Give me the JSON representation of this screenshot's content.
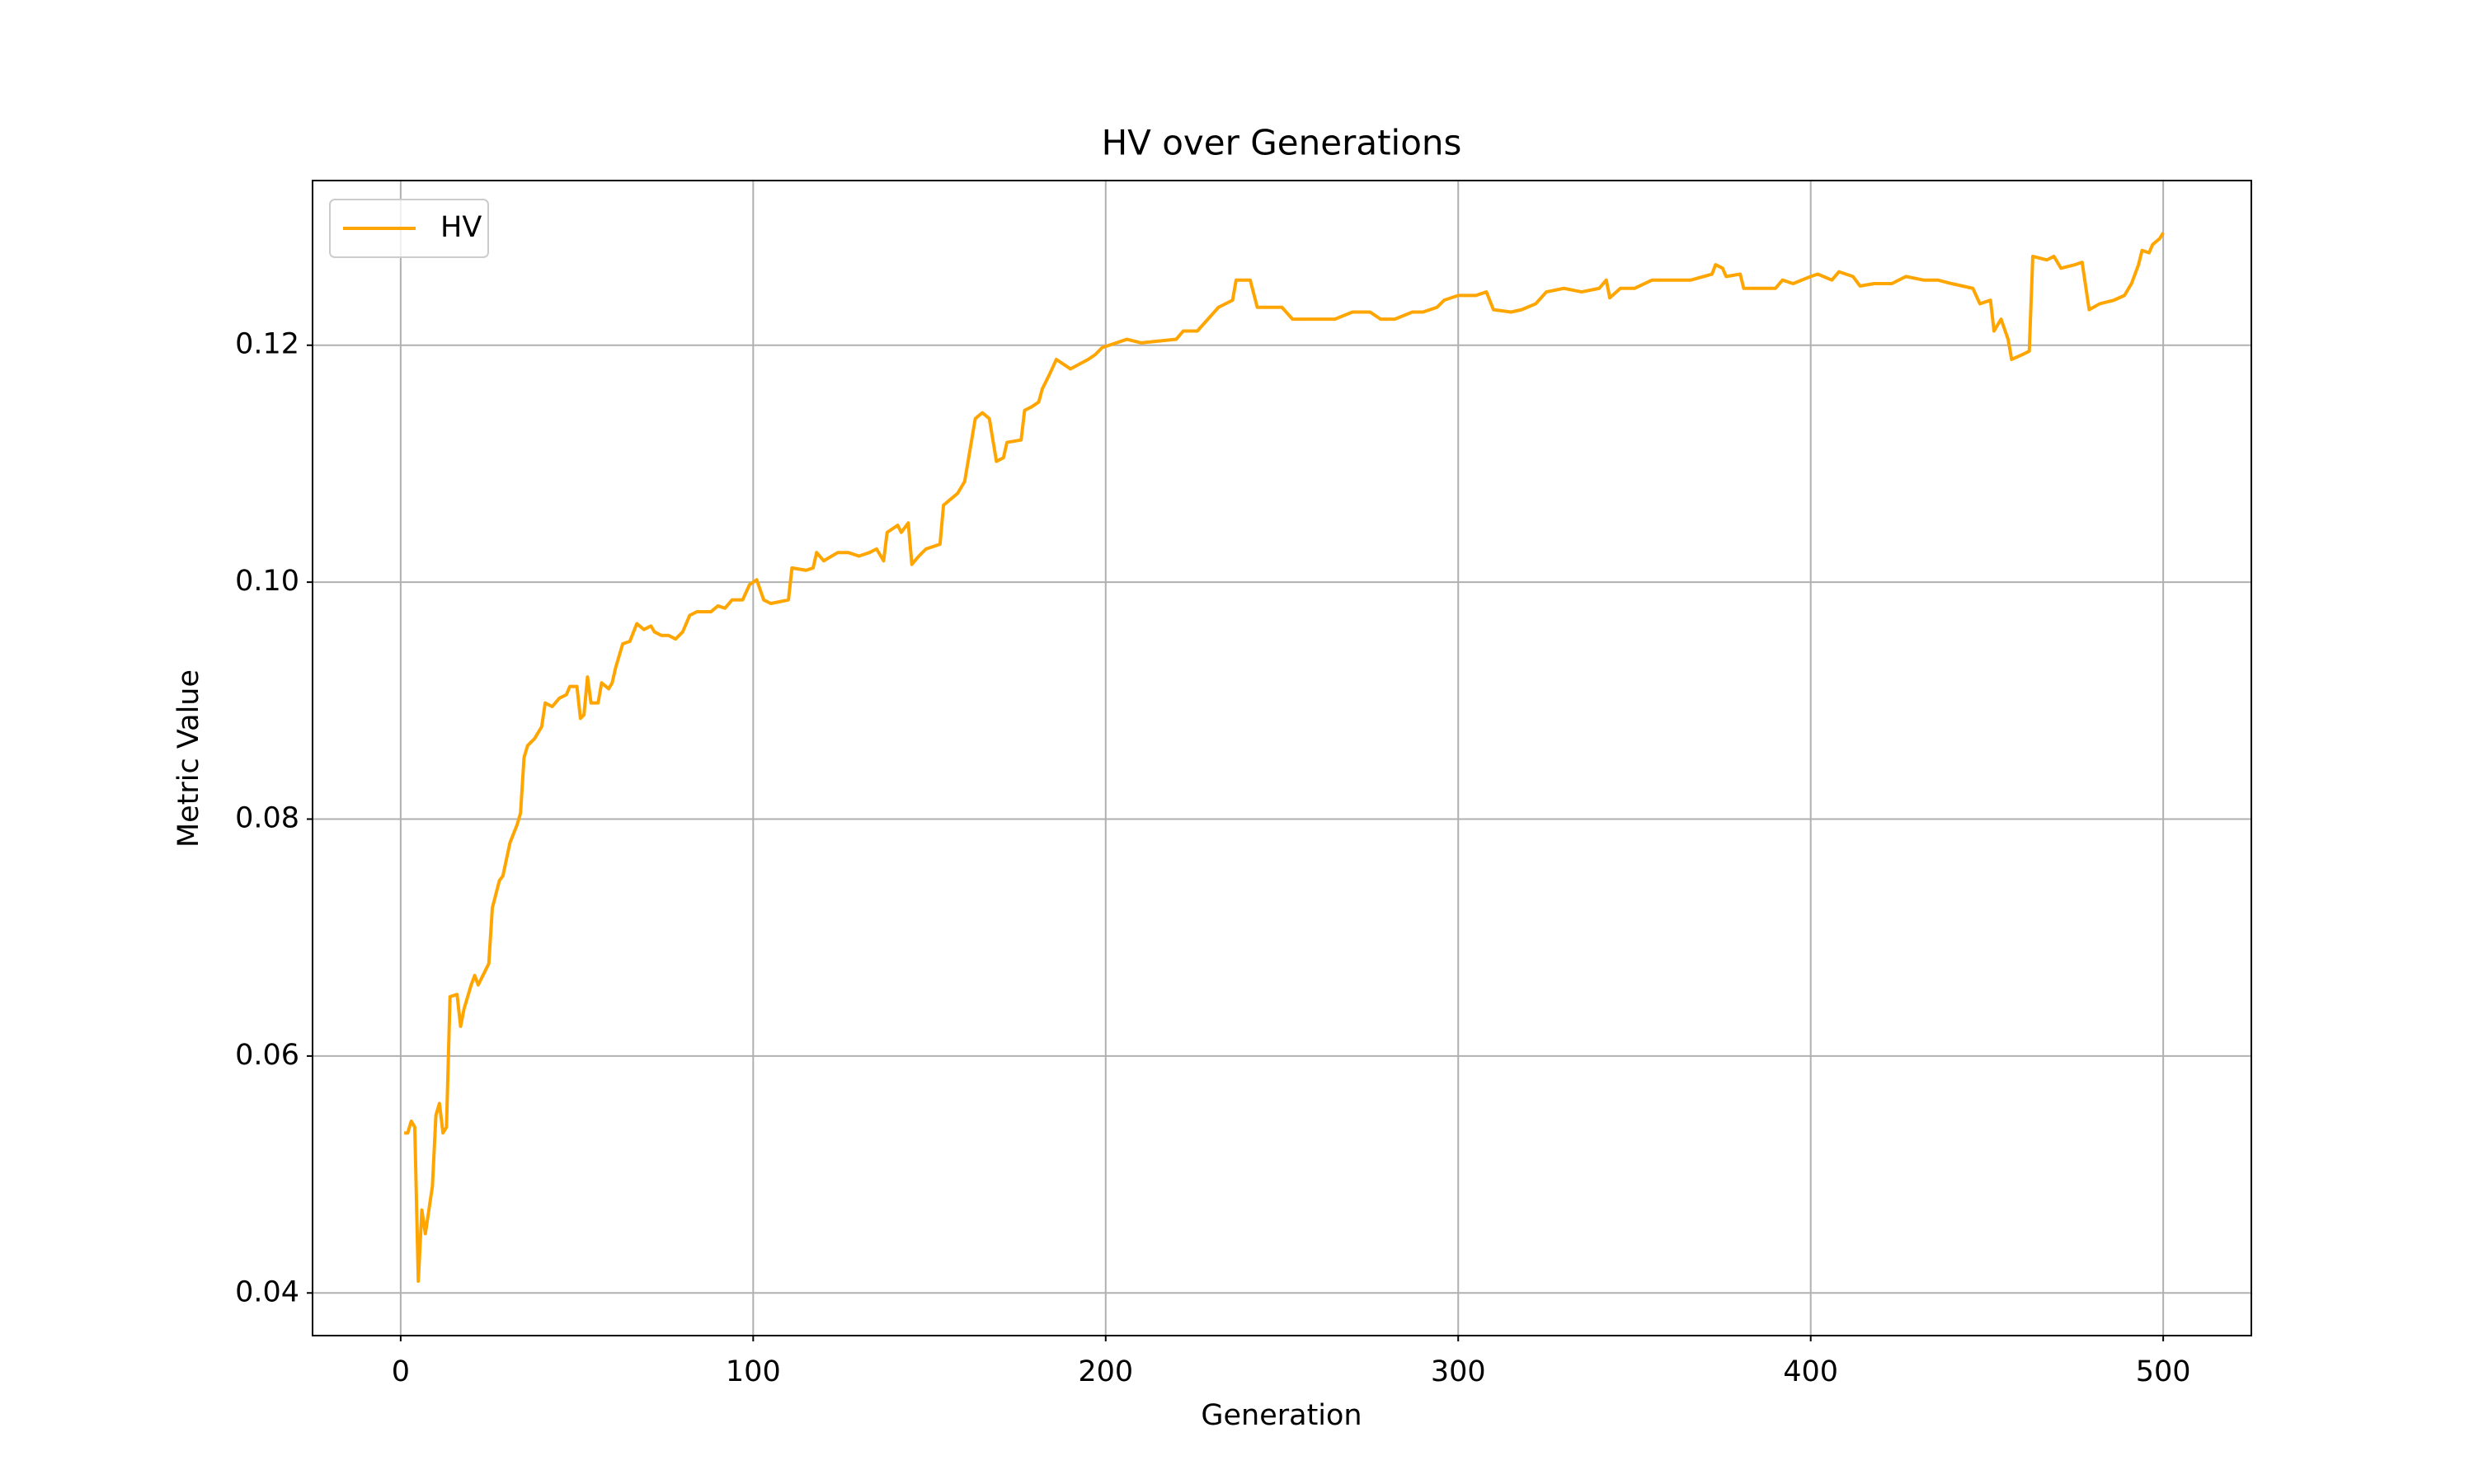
{
  "chart_data": {
    "type": "line",
    "title": "HV over Generations",
    "x_label": "Generation",
    "y_label": "Metric Value",
    "xlim": [
      -25,
      525
    ],
    "xticks": [
      0,
      100,
      200,
      300,
      400,
      500
    ],
    "ylim": [
      0.0364,
      0.1339
    ],
    "yticks": [
      0.04,
      0.06,
      0.08,
      {
        "value": 0.1,
        "label": "0.10"
      },
      0.12
    ],
    "grid": true,
    "legend": "upper left",
    "x": [
      1,
      2,
      3,
      4,
      5,
      6,
      7,
      8,
      9,
      10,
      11,
      12,
      13,
      14,
      16,
      17,
      18,
      20,
      21,
      22,
      25,
      26,
      28,
      29,
      31,
      33,
      34,
      35,
      36,
      38,
      40,
      41,
      43,
      45,
      47,
      48,
      50,
      51,
      52,
      53,
      54,
      56,
      57,
      59,
      60,
      61,
      63,
      65,
      67,
      69,
      71,
      72,
      74,
      76,
      78,
      80,
      82,
      84,
      88,
      90,
      92,
      94,
      97,
      99,
      101,
      103,
      105,
      110,
      111,
      115,
      117,
      118,
      120,
      124,
      127,
      130,
      133,
      135,
      137,
      138,
      141,
      142,
      144,
      145,
      147,
      149,
      153,
      154,
      156,
      158,
      160,
      163,
      165,
      167,
      169,
      171,
      172,
      176,
      177,
      179,
      181,
      182,
      184,
      186,
      190,
      195,
      197,
      199,
      203,
      206,
      210,
      220,
      222,
      226,
      229,
      232,
      236,
      237,
      241,
      243,
      246,
      250,
      253,
      260,
      265,
      270,
      275,
      278,
      282,
      287,
      290,
      294,
      296,
      300,
      305,
      308,
      310,
      315,
      318,
      322,
      325,
      330,
      335,
      340,
      342,
      343,
      346,
      350,
      355,
      362,
      366,
      372,
      373,
      375,
      376,
      380,
      381,
      387,
      390,
      392,
      395,
      400,
      402,
      406,
      408,
      412,
      414,
      418,
      423,
      427,
      432,
      436,
      440,
      446,
      448,
      451,
      452,
      454,
      456,
      457,
      460,
      462,
      463,
      467,
      469,
      471,
      475,
      477,
      479,
      482,
      486,
      489,
      491,
      493,
      494,
      496,
      497,
      499,
      500
    ],
    "series": [
      {
        "name": "HV",
        "color": "#ffa500",
        "values": [
          0.0535,
          0.0535,
          0.0545,
          0.054,
          0.041,
          0.047,
          0.045,
          0.047,
          0.049,
          0.055,
          0.056,
          0.0535,
          0.054,
          0.065,
          0.0652,
          0.0625,
          0.064,
          0.066,
          0.0668,
          0.066,
          0.0678,
          0.0725,
          0.0748,
          0.0752,
          0.078,
          0.0795,
          0.0805,
          0.0852,
          0.0862,
          0.0868,
          0.0878,
          0.0898,
          0.0895,
          0.0902,
          0.0905,
          0.0912,
          0.0912,
          0.0885,
          0.0888,
          0.092,
          0.0898,
          0.0898,
          0.0915,
          0.091,
          0.0915,
          0.0928,
          0.0948,
          0.095,
          0.0965,
          0.096,
          0.0963,
          0.0958,
          0.0955,
          0.0955,
          0.0952,
          0.0958,
          0.0972,
          0.0975,
          0.0975,
          0.098,
          0.0978,
          0.0985,
          0.0985,
          0.0998,
          0.1002,
          0.0985,
          0.0982,
          0.0985,
          0.1012,
          0.101,
          0.1012,
          0.1025,
          0.1018,
          0.1025,
          0.1025,
          0.1022,
          0.1025,
          0.1028,
          0.1018,
          0.1042,
          0.1048,
          0.1042,
          0.105,
          0.1015,
          0.1022,
          0.1028,
          0.1032,
          0.1065,
          0.107,
          0.1075,
          0.1085,
          0.1138,
          0.1143,
          0.1138,
          0.1102,
          0.1105,
          0.1118,
          0.112,
          0.1145,
          0.1148,
          0.1152,
          0.1163,
          0.1175,
          0.1188,
          0.118,
          0.1188,
          0.1192,
          0.1198,
          0.1202,
          0.1205,
          0.1202,
          0.1205,
          0.1212,
          0.1212,
          0.1222,
          0.1232,
          0.1238,
          0.1255,
          0.1255,
          0.1232,
          0.1232,
          0.1232,
          0.1222,
          0.1222,
          0.1222,
          0.1228,
          0.1228,
          0.1222,
          0.1222,
          0.1228,
          0.1228,
          0.1232,
          0.1238,
          0.1242,
          0.1242,
          0.1245,
          0.123,
          0.1228,
          0.123,
          0.1235,
          0.1245,
          0.1248,
          0.1245,
          0.1248,
          0.1255,
          0.124,
          0.1248,
          0.1248,
          0.1255,
          0.1255,
          0.1255,
          0.126,
          0.1268,
          0.1265,
          0.1258,
          0.126,
          0.1248,
          0.1248,
          0.1248,
          0.1255,
          0.1252,
          0.1258,
          0.126,
          0.1255,
          0.1262,
          0.1258,
          0.125,
          0.1252,
          0.1252,
          0.1258,
          0.1255,
          0.1255,
          0.1252,
          0.1248,
          0.1235,
          0.1238,
          0.1212,
          0.1222,
          0.1205,
          0.1188,
          0.1192,
          0.1195,
          0.1275,
          0.1272,
          0.1275,
          0.1265,
          0.1268,
          0.127,
          0.123,
          0.1235,
          0.1238,
          0.1242,
          0.1252,
          0.1268,
          0.128,
          0.1278,
          0.1285,
          0.129,
          0.1295
        ]
      }
    ]
  }
}
